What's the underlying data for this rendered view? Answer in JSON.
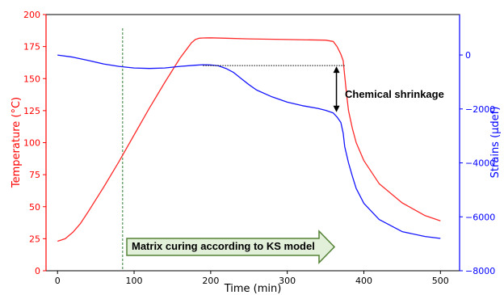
{
  "chart_data": {
    "type": "line",
    "title": "",
    "xlabel": "Time (min)",
    "ylabel_left": "Temperature (°C)",
    "ylabel_right": "Strains (µdef)",
    "xlim": [
      -15,
      525
    ],
    "ylim_left": [
      0,
      200
    ],
    "ylim_right": [
      -8000,
      1500
    ],
    "x_ticks": [
      0,
      100,
      200,
      300,
      400,
      500
    ],
    "y_ticks_left": [
      0,
      25,
      50,
      75,
      100,
      125,
      150,
      175,
      200
    ],
    "y_ticks_right": [
      -8000,
      -6000,
      -4000,
      -2000,
      0
    ],
    "grid": false,
    "colors": {
      "temperature": "#ff2a2a",
      "strain": "#1414ff",
      "left_axis": "#ff0000",
      "right_axis": "#0000ff",
      "curing_line": "#2e7d32",
      "arrow_fill": "#e2efd9",
      "arrow_stroke": "#548235"
    },
    "series": [
      {
        "axis": "left",
        "x": [
          0,
          10,
          20,
          30,
          40,
          60,
          80,
          100,
          120,
          140,
          160,
          170,
          175,
          180,
          185,
          190,
          200,
          220,
          250,
          300,
          350,
          360,
          365,
          370,
          373,
          375,
          378,
          380,
          385,
          390,
          400,
          420,
          450,
          480,
          500
        ],
        "y": [
          23,
          25,
          30,
          37,
          46,
          65,
          85,
          106,
          127,
          147,
          166,
          174,
          178,
          180.5,
          181.5,
          181.7,
          181.8,
          181.5,
          181,
          180.5,
          180,
          179,
          175,
          169,
          164,
          152,
          135,
          125,
          111,
          100,
          86,
          68,
          53,
          43,
          39
        ]
      },
      {
        "axis": "right",
        "x": [
          0,
          20,
          40,
          60,
          80,
          100,
          120,
          140,
          160,
          180,
          190,
          200,
          210,
          220,
          230,
          240,
          250,
          260,
          280,
          300,
          320,
          340,
          350,
          360,
          365,
          370,
          373,
          375,
          380,
          385,
          390,
          400,
          420,
          450,
          480,
          500
        ],
        "y": [
          0,
          -80,
          -200,
          -330,
          -420,
          -480,
          -500,
          -480,
          -420,
          -380,
          -360,
          -370,
          -400,
          -500,
          -650,
          -880,
          -1100,
          -1300,
          -1550,
          -1750,
          -1880,
          -1980,
          -2050,
          -2150,
          -2300,
          -2500,
          -2900,
          -3400,
          -4000,
          -4500,
          -4950,
          -5500,
          -6100,
          -6550,
          -6730,
          -6800
        ]
      }
    ],
    "annotations": {
      "chemical_shrinkage": "Chemical shrinkage",
      "curing_arrow": "Matrix curing according to KS model",
      "curing_start_x": 85,
      "shrinkage_x": 360,
      "shrinkage_top_strain": -390,
      "shrinkage_bottom_strain": -2150,
      "dotted_line_x": [
        190,
        375
      ]
    }
  }
}
